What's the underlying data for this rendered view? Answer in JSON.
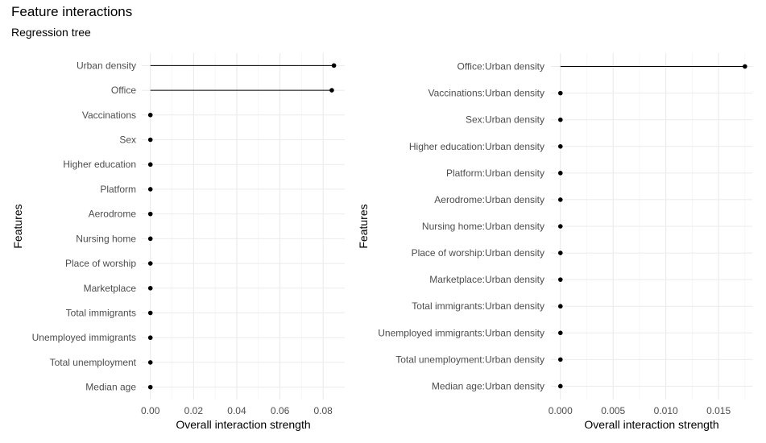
{
  "title": "Feature interactions",
  "subtitle": "Regression tree",
  "chart_data": [
    {
      "type": "lollipop",
      "xlabel": "Overall interaction strength",
      "ylabel": "Features",
      "xlim": [
        -0.004,
        0.09
      ],
      "xticks": [
        0.0,
        0.02,
        0.04,
        0.06,
        0.08
      ],
      "xtick_labels": [
        "0.00",
        "0.02",
        "0.04",
        "0.06",
        "0.08"
      ],
      "grid": true,
      "categories": [
        "Urban density",
        "Office",
        "Vaccinations",
        "Sex",
        "Higher education",
        "Platform",
        "Aerodrome",
        "Nursing home",
        "Place of worship",
        "Marketplace",
        "Total immigrants",
        "Unemployed immigrants",
        "Total unemployment",
        "Median age"
      ],
      "values": [
        0.085,
        0.084,
        0.0,
        0.0,
        0.0,
        0.0,
        0.0,
        0.0,
        0.0,
        0.0,
        0.0,
        0.0,
        0.0,
        0.0
      ]
    },
    {
      "type": "lollipop",
      "xlabel": "Overall interaction strength",
      "ylabel": "Features",
      "xlim": [
        -0.0009,
        0.0182
      ],
      "xticks": [
        0.0,
        0.005,
        0.01,
        0.015
      ],
      "xtick_labels": [
        "0.000",
        "0.005",
        "0.010",
        "0.015"
      ],
      "grid": true,
      "categories": [
        "Office:Urban density",
        "Vaccinations:Urban density",
        "Sex:Urban density",
        "Higher education:Urban density",
        "Platform:Urban density",
        "Aerodrome:Urban density",
        "Nursing home:Urban density",
        "Place of worship:Urban density",
        "Marketplace:Urban density",
        "Total immigrants:Urban density",
        "Unemployed immigrants:Urban density",
        "Total unemployment:Urban density",
        "Median age:Urban density"
      ],
      "values": [
        0.0175,
        0.0,
        0.0,
        0.0,
        0.0,
        0.0,
        0.0,
        0.0,
        0.0,
        0.0,
        0.0,
        0.0,
        0.0
      ]
    }
  ]
}
